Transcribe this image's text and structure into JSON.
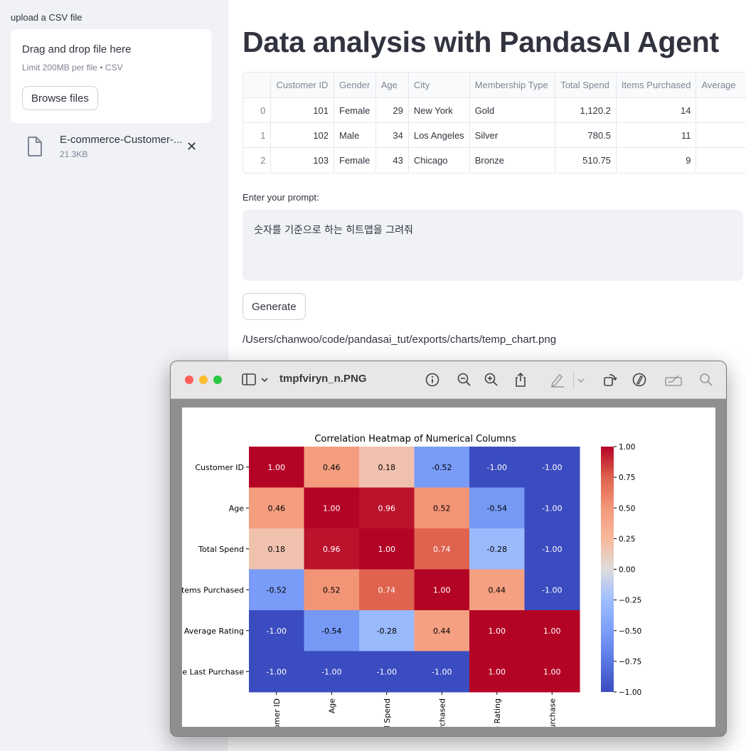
{
  "sidebar": {
    "upload_label": "upload a CSV file",
    "dropzone_title": "Drag and drop file here",
    "dropzone_limit": "Limit 200MB per file • CSV",
    "browse_label": "Browse files",
    "file_name": "E-commerce-Customer-...",
    "file_size": "21.3KB"
  },
  "main": {
    "title": "Data analysis with PandasAI Agent",
    "prompt_label": "Enter your prompt:",
    "prompt_value": "숫자를 기준으로 하는 히트맵을 그려줘",
    "generate_label": "Generate",
    "export_path": "/Users/chanwoo/code/pandasai_tut/exports/charts/temp_chart.png"
  },
  "dataframe": {
    "columns": [
      "",
      "Customer ID",
      "Gender",
      "Age",
      "City",
      "Membership Type",
      "Total Spend",
      "Items Purchased",
      "Average"
    ],
    "rows": [
      [
        "0",
        "101",
        "Female",
        "29",
        "New York",
        "Gold",
        "1,120.2",
        "14",
        ""
      ],
      [
        "1",
        "102",
        "Male",
        "34",
        "Los Angeles",
        "Silver",
        "780.5",
        "11",
        ""
      ],
      [
        "2",
        "103",
        "Female",
        "43",
        "Chicago",
        "Bronze",
        "510.75",
        "9",
        ""
      ]
    ]
  },
  "preview": {
    "window_title": "tmpfviryn_n.PNG",
    "toolbar_icons": [
      "sidebar-icon",
      "info-icon",
      "zoom-out-icon",
      "zoom-in-icon",
      "share-icon",
      "markup-pen-icon",
      "rotate-icon",
      "markup-icon",
      "signature-icon",
      "search-icon"
    ]
  },
  "chart_data": {
    "type": "heatmap",
    "title": "Correlation Heatmap of Numerical Columns",
    "row_labels": [
      "Customer ID",
      "Age",
      "Total Spend",
      "Items Purchased",
      "Average Rating",
      "ce Last Purchase"
    ],
    "col_labels": [
      "omer ID",
      "Age",
      "al Spend",
      "rchased",
      "e Rating",
      "urchase"
    ],
    "values": [
      [
        1.0,
        0.46,
        0.18,
        -0.52,
        -1.0,
        -1.0
      ],
      [
        0.46,
        1.0,
        0.96,
        0.52,
        -0.54,
        -1.0
      ],
      [
        0.18,
        0.96,
        1.0,
        0.74,
        -0.28,
        -1.0
      ],
      [
        -0.52,
        0.52,
        0.74,
        1.0,
        0.44,
        -1.0
      ],
      [
        -1.0,
        -0.54,
        -0.28,
        0.44,
        1.0,
        1.0
      ],
      [
        -1.0,
        -1.0,
        -1.0,
        -1.0,
        1.0,
        1.0
      ]
    ],
    "value_labels": [
      [
        "1.00",
        "0.46",
        "0.18",
        "-0.52",
        "-1.00",
        "-1.00"
      ],
      [
        "0.46",
        "1.00",
        "0.96",
        "0.52",
        "-0.54",
        "-1.00"
      ],
      [
        "0.18",
        "0.96",
        "1.00",
        "0.74",
        "-0.28",
        "-1.00"
      ],
      [
        "-0.52",
        "0.52",
        "0.74",
        "1.00",
        "0.44",
        "-1.00"
      ],
      [
        "-1.00",
        "-0.54",
        "-0.28",
        "0.44",
        "1.00",
        "1.00"
      ],
      [
        "-1.00",
        "-1.00",
        "-1.00",
        "-1.00",
        "1.00",
        "1.00"
      ]
    ],
    "colormap": "coolwarm",
    "vmin": -1.0,
    "vmax": 1.0,
    "colorbar_ticks": [
      "1.00",
      "0.75",
      "0.50",
      "0.25",
      "0.00",
      "−0.25",
      "−0.50",
      "−0.75",
      "−1.00"
    ]
  }
}
